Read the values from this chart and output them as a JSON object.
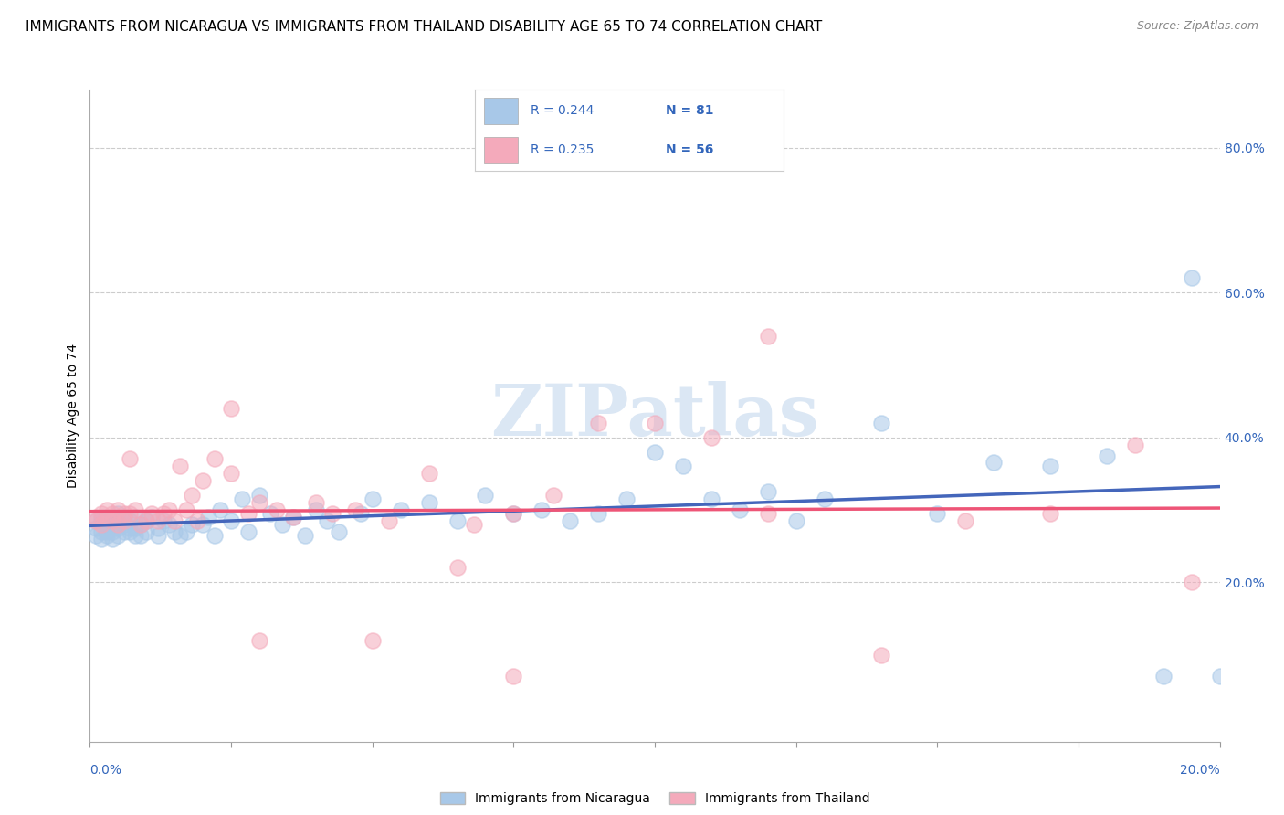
{
  "title": "IMMIGRANTS FROM NICARAGUA VS IMMIGRANTS FROM THAILAND DISABILITY AGE 65 TO 74 CORRELATION CHART",
  "source": "Source: ZipAtlas.com",
  "ylabel": "Disability Age 65 to 74",
  "legend_label1": "Immigrants from Nicaragua",
  "legend_label2": "Immigrants from Thailand",
  "legend_r1": "R = 0.244",
  "legend_n1": "N = 81",
  "legend_r2": "R = 0.235",
  "legend_n2": "N = 56",
  "color_nicaragua": "#A8C8E8",
  "color_thailand": "#F4AABB",
  "color_line_nicaragua": "#4466BB",
  "color_line_thailand": "#EE5577",
  "xlim": [
    0.0,
    0.2
  ],
  "ylim": [
    -0.02,
    0.88
  ],
  "yticks": [
    0.2,
    0.4,
    0.6,
    0.8
  ],
  "background_color": "#ffffff",
  "grid_color": "#cccccc",
  "title_fontsize": 11,
  "axis_fontsize": 10,
  "tick_fontsize": 10,
  "watermark_color": "#ccddf0",
  "nicaragua_x": [
    0.001,
    0.001,
    0.001,
    0.002,
    0.002,
    0.002,
    0.002,
    0.003,
    0.003,
    0.003,
    0.003,
    0.004,
    0.004,
    0.004,
    0.005,
    0.005,
    0.005,
    0.005,
    0.006,
    0.006,
    0.006,
    0.007,
    0.007,
    0.007,
    0.008,
    0.008,
    0.008,
    0.009,
    0.009,
    0.01,
    0.01,
    0.011,
    0.012,
    0.012,
    0.013,
    0.014,
    0.015,
    0.016,
    0.017,
    0.018,
    0.02,
    0.021,
    0.022,
    0.023,
    0.025,
    0.027,
    0.028,
    0.03,
    0.032,
    0.034,
    0.036,
    0.038,
    0.04,
    0.042,
    0.044,
    0.048,
    0.05,
    0.055,
    0.06,
    0.065,
    0.07,
    0.075,
    0.08,
    0.085,
    0.09,
    0.095,
    0.1,
    0.105,
    0.11,
    0.115,
    0.12,
    0.125,
    0.13,
    0.14,
    0.15,
    0.16,
    0.17,
    0.18,
    0.19,
    0.195,
    0.2
  ],
  "nicaragua_y": [
    0.285,
    0.275,
    0.265,
    0.29,
    0.27,
    0.26,
    0.285,
    0.28,
    0.27,
    0.265,
    0.29,
    0.27,
    0.285,
    0.26,
    0.275,
    0.285,
    0.265,
    0.295,
    0.28,
    0.27,
    0.29,
    0.275,
    0.285,
    0.27,
    0.265,
    0.29,
    0.275,
    0.28,
    0.265,
    0.27,
    0.285,
    0.29,
    0.275,
    0.265,
    0.285,
    0.28,
    0.27,
    0.265,
    0.27,
    0.28,
    0.28,
    0.29,
    0.265,
    0.3,
    0.285,
    0.315,
    0.27,
    0.32,
    0.295,
    0.28,
    0.29,
    0.265,
    0.3,
    0.285,
    0.27,
    0.295,
    0.315,
    0.3,
    0.31,
    0.285,
    0.32,
    0.295,
    0.3,
    0.285,
    0.295,
    0.315,
    0.38,
    0.36,
    0.315,
    0.3,
    0.325,
    0.285,
    0.315,
    0.42,
    0.295,
    0.365,
    0.36,
    0.375,
    0.07,
    0.62,
    0.07
  ],
  "thailand_x": [
    0.001,
    0.001,
    0.002,
    0.002,
    0.003,
    0.003,
    0.004,
    0.004,
    0.005,
    0.005,
    0.006,
    0.006,
    0.007,
    0.007,
    0.008,
    0.009,
    0.01,
    0.011,
    0.012,
    0.013,
    0.014,
    0.015,
    0.016,
    0.017,
    0.018,
    0.019,
    0.02,
    0.022,
    0.025,
    0.028,
    0.03,
    0.033,
    0.036,
    0.04,
    0.043,
    0.047,
    0.053,
    0.06,
    0.068,
    0.075,
    0.082,
    0.09,
    0.1,
    0.11,
    0.12,
    0.14,
    0.155,
    0.17,
    0.185,
    0.195,
    0.025,
    0.03,
    0.05,
    0.065,
    0.075,
    0.12
  ],
  "thailand_y": [
    0.29,
    0.285,
    0.295,
    0.28,
    0.29,
    0.3,
    0.285,
    0.295,
    0.28,
    0.3,
    0.295,
    0.285,
    0.295,
    0.37,
    0.3,
    0.28,
    0.285,
    0.295,
    0.285,
    0.295,
    0.3,
    0.285,
    0.36,
    0.3,
    0.32,
    0.285,
    0.34,
    0.37,
    0.35,
    0.295,
    0.31,
    0.3,
    0.29,
    0.31,
    0.295,
    0.3,
    0.285,
    0.35,
    0.28,
    0.295,
    0.32,
    0.42,
    0.42,
    0.4,
    0.295,
    0.1,
    0.285,
    0.295,
    0.39,
    0.2,
    0.44,
    0.12,
    0.12,
    0.22,
    0.07,
    0.54
  ]
}
